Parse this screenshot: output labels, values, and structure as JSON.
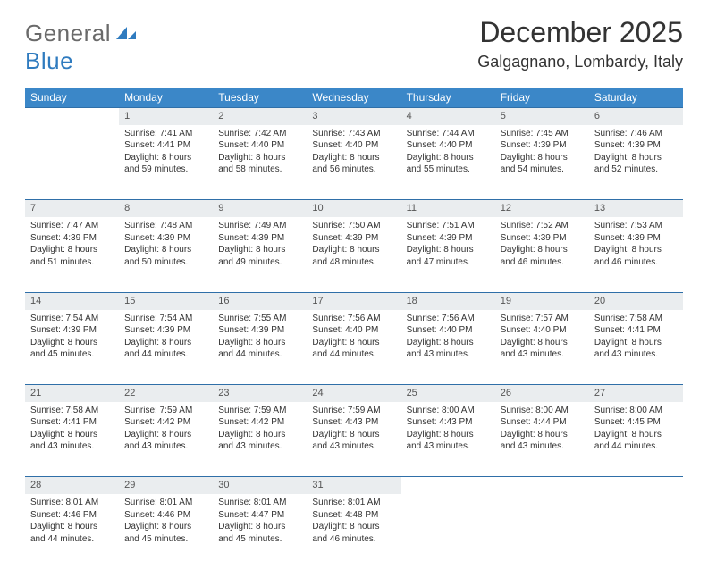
{
  "logo": {
    "word1": "General",
    "word2": "Blue"
  },
  "title": "December 2025",
  "location": "Galgagnano, Lombardy, Italy",
  "colors": {
    "header_bg": "#3b87c8",
    "header_text": "#ffffff",
    "daynum_bg": "#eaedef",
    "row_border": "#2f6fa8",
    "body_text": "#333333",
    "logo_gray": "#6a6a6a",
    "logo_blue": "#2f7bbf"
  },
  "weekdays": [
    "Sunday",
    "Monday",
    "Tuesday",
    "Wednesday",
    "Thursday",
    "Friday",
    "Saturday"
  ],
  "weeks": [
    [
      null,
      {
        "n": "1",
        "sr": "Sunrise: 7:41 AM",
        "ss": "Sunset: 4:41 PM",
        "dl": "Daylight: 8 hours and 59 minutes."
      },
      {
        "n": "2",
        "sr": "Sunrise: 7:42 AM",
        "ss": "Sunset: 4:40 PM",
        "dl": "Daylight: 8 hours and 58 minutes."
      },
      {
        "n": "3",
        "sr": "Sunrise: 7:43 AM",
        "ss": "Sunset: 4:40 PM",
        "dl": "Daylight: 8 hours and 56 minutes."
      },
      {
        "n": "4",
        "sr": "Sunrise: 7:44 AM",
        "ss": "Sunset: 4:40 PM",
        "dl": "Daylight: 8 hours and 55 minutes."
      },
      {
        "n": "5",
        "sr": "Sunrise: 7:45 AM",
        "ss": "Sunset: 4:39 PM",
        "dl": "Daylight: 8 hours and 54 minutes."
      },
      {
        "n": "6",
        "sr": "Sunrise: 7:46 AM",
        "ss": "Sunset: 4:39 PM",
        "dl": "Daylight: 8 hours and 52 minutes."
      }
    ],
    [
      {
        "n": "7",
        "sr": "Sunrise: 7:47 AM",
        "ss": "Sunset: 4:39 PM",
        "dl": "Daylight: 8 hours and 51 minutes."
      },
      {
        "n": "8",
        "sr": "Sunrise: 7:48 AM",
        "ss": "Sunset: 4:39 PM",
        "dl": "Daylight: 8 hours and 50 minutes."
      },
      {
        "n": "9",
        "sr": "Sunrise: 7:49 AM",
        "ss": "Sunset: 4:39 PM",
        "dl": "Daylight: 8 hours and 49 minutes."
      },
      {
        "n": "10",
        "sr": "Sunrise: 7:50 AM",
        "ss": "Sunset: 4:39 PM",
        "dl": "Daylight: 8 hours and 48 minutes."
      },
      {
        "n": "11",
        "sr": "Sunrise: 7:51 AM",
        "ss": "Sunset: 4:39 PM",
        "dl": "Daylight: 8 hours and 47 minutes."
      },
      {
        "n": "12",
        "sr": "Sunrise: 7:52 AM",
        "ss": "Sunset: 4:39 PM",
        "dl": "Daylight: 8 hours and 46 minutes."
      },
      {
        "n": "13",
        "sr": "Sunrise: 7:53 AM",
        "ss": "Sunset: 4:39 PM",
        "dl": "Daylight: 8 hours and 46 minutes."
      }
    ],
    [
      {
        "n": "14",
        "sr": "Sunrise: 7:54 AM",
        "ss": "Sunset: 4:39 PM",
        "dl": "Daylight: 8 hours and 45 minutes."
      },
      {
        "n": "15",
        "sr": "Sunrise: 7:54 AM",
        "ss": "Sunset: 4:39 PM",
        "dl": "Daylight: 8 hours and 44 minutes."
      },
      {
        "n": "16",
        "sr": "Sunrise: 7:55 AM",
        "ss": "Sunset: 4:39 PM",
        "dl": "Daylight: 8 hours and 44 minutes."
      },
      {
        "n": "17",
        "sr": "Sunrise: 7:56 AM",
        "ss": "Sunset: 4:40 PM",
        "dl": "Daylight: 8 hours and 44 minutes."
      },
      {
        "n": "18",
        "sr": "Sunrise: 7:56 AM",
        "ss": "Sunset: 4:40 PM",
        "dl": "Daylight: 8 hours and 43 minutes."
      },
      {
        "n": "19",
        "sr": "Sunrise: 7:57 AM",
        "ss": "Sunset: 4:40 PM",
        "dl": "Daylight: 8 hours and 43 minutes."
      },
      {
        "n": "20",
        "sr": "Sunrise: 7:58 AM",
        "ss": "Sunset: 4:41 PM",
        "dl": "Daylight: 8 hours and 43 minutes."
      }
    ],
    [
      {
        "n": "21",
        "sr": "Sunrise: 7:58 AM",
        "ss": "Sunset: 4:41 PM",
        "dl": "Daylight: 8 hours and 43 minutes."
      },
      {
        "n": "22",
        "sr": "Sunrise: 7:59 AM",
        "ss": "Sunset: 4:42 PM",
        "dl": "Daylight: 8 hours and 43 minutes."
      },
      {
        "n": "23",
        "sr": "Sunrise: 7:59 AM",
        "ss": "Sunset: 4:42 PM",
        "dl": "Daylight: 8 hours and 43 minutes."
      },
      {
        "n": "24",
        "sr": "Sunrise: 7:59 AM",
        "ss": "Sunset: 4:43 PM",
        "dl": "Daylight: 8 hours and 43 minutes."
      },
      {
        "n": "25",
        "sr": "Sunrise: 8:00 AM",
        "ss": "Sunset: 4:43 PM",
        "dl": "Daylight: 8 hours and 43 minutes."
      },
      {
        "n": "26",
        "sr": "Sunrise: 8:00 AM",
        "ss": "Sunset: 4:44 PM",
        "dl": "Daylight: 8 hours and 43 minutes."
      },
      {
        "n": "27",
        "sr": "Sunrise: 8:00 AM",
        "ss": "Sunset: 4:45 PM",
        "dl": "Daylight: 8 hours and 44 minutes."
      }
    ],
    [
      {
        "n": "28",
        "sr": "Sunrise: 8:01 AM",
        "ss": "Sunset: 4:46 PM",
        "dl": "Daylight: 8 hours and 44 minutes."
      },
      {
        "n": "29",
        "sr": "Sunrise: 8:01 AM",
        "ss": "Sunset: 4:46 PM",
        "dl": "Daylight: 8 hours and 45 minutes."
      },
      {
        "n": "30",
        "sr": "Sunrise: 8:01 AM",
        "ss": "Sunset: 4:47 PM",
        "dl": "Daylight: 8 hours and 45 minutes."
      },
      {
        "n": "31",
        "sr": "Sunrise: 8:01 AM",
        "ss": "Sunset: 4:48 PM",
        "dl": "Daylight: 8 hours and 46 minutes."
      },
      null,
      null,
      null
    ]
  ]
}
